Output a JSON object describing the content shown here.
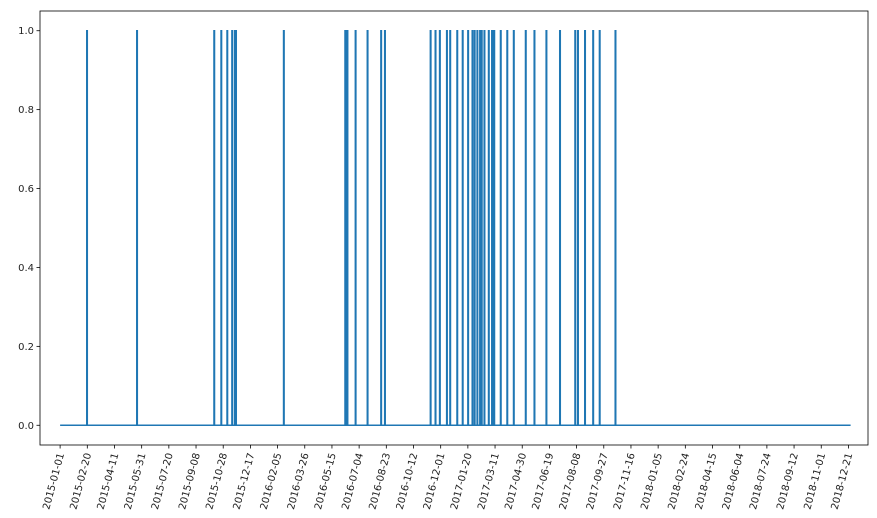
{
  "chart_data": {
    "type": "line",
    "title": "",
    "xlabel": "",
    "ylabel": "",
    "x_start": "2015-01-01",
    "x_end": "2018-12-25",
    "xlim": [
      "2014-11-25",
      "2019-01-26"
    ],
    "ylim": [
      -0.05,
      1.05
    ],
    "grid": false,
    "line_color": "#1f77b4",
    "x_ticks": [
      "2015-01-01",
      "2015-02-20",
      "2015-04-11",
      "2015-05-31",
      "2015-07-20",
      "2015-09-08",
      "2015-10-28",
      "2015-12-17",
      "2016-02-05",
      "2016-03-26",
      "2016-05-15",
      "2016-07-04",
      "2016-08-23",
      "2016-10-12",
      "2016-12-01",
      "2017-01-20",
      "2017-03-11",
      "2017-04-30",
      "2017-06-19",
      "2017-08-08",
      "2017-09-27",
      "2017-11-16",
      "2018-01-05",
      "2018-02-24",
      "2018-04-15",
      "2018-06-04",
      "2018-07-24",
      "2018-09-12",
      "2018-11-01",
      "2018-12-21"
    ],
    "y_ticks": [
      "0.0",
      "0.2",
      "0.4",
      "0.6",
      "0.8",
      "1.0"
    ],
    "y_tick_values": [
      0,
      0.2,
      0.4,
      0.6,
      0.8,
      1.0
    ],
    "spike_value": 1,
    "spike_dates": [
      "2015-02-19",
      "2015-05-22",
      "2015-10-11",
      "2015-10-24",
      "2015-11-04",
      "2015-11-13",
      "2015-11-18",
      "2015-11-20",
      "2016-02-16",
      "2016-06-08",
      "2016-06-10",
      "2016-06-12",
      "2016-06-27",
      "2016-07-19",
      "2016-08-13",
      "2016-08-20",
      "2016-11-12",
      "2016-11-21",
      "2016-11-29",
      "2016-12-12",
      "2016-12-18",
      "2016-12-31",
      "2017-01-10",
      "2017-01-20",
      "2017-01-28",
      "2017-02-01",
      "2017-02-06",
      "2017-02-11",
      "2017-02-14",
      "2017-02-19",
      "2017-02-27",
      "2017-03-05",
      "2017-03-07",
      "2017-03-09",
      "2017-03-21",
      "2017-04-02",
      "2017-04-14",
      "2017-05-06",
      "2017-05-22",
      "2017-06-13",
      "2017-07-08",
      "2017-08-05",
      "2017-08-10",
      "2017-08-23",
      "2017-09-07",
      "2017-09-19",
      "2017-10-18"
    ]
  }
}
